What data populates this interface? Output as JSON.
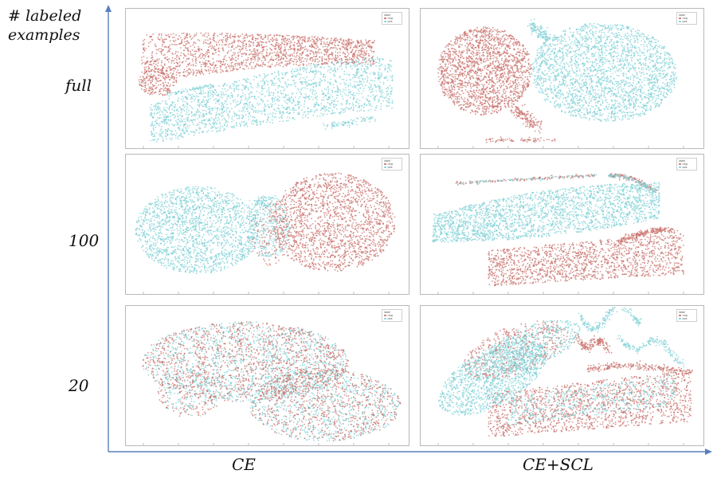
{
  "y_axis_title_line1": "# labeled",
  "y_axis_title_line2": "examples",
  "rows": [
    "full",
    "100",
    "20"
  ],
  "columns": [
    "CE",
    "CE+SCL"
  ],
  "legend": {
    "title": "label",
    "items": [
      "neg",
      "pos"
    ]
  },
  "colors": {
    "neg": "#c8706b",
    "pos": "#7fd0d6",
    "axis": "#5b7fbd"
  },
  "panels": [
    {
      "row": "full",
      "column": "CE",
      "pattern": "separated-bands"
    },
    {
      "row": "full",
      "column": "CE+SCL",
      "pattern": "separated-lobes"
    },
    {
      "row": "100",
      "column": "CE",
      "pattern": "partially-separated"
    },
    {
      "row": "100",
      "column": "CE+SCL",
      "pattern": "separated-bands"
    },
    {
      "row": "20",
      "column": "CE",
      "pattern": "mixed"
    },
    {
      "row": "20",
      "column": "CE+SCL",
      "pattern": "partially-separated"
    }
  ]
}
